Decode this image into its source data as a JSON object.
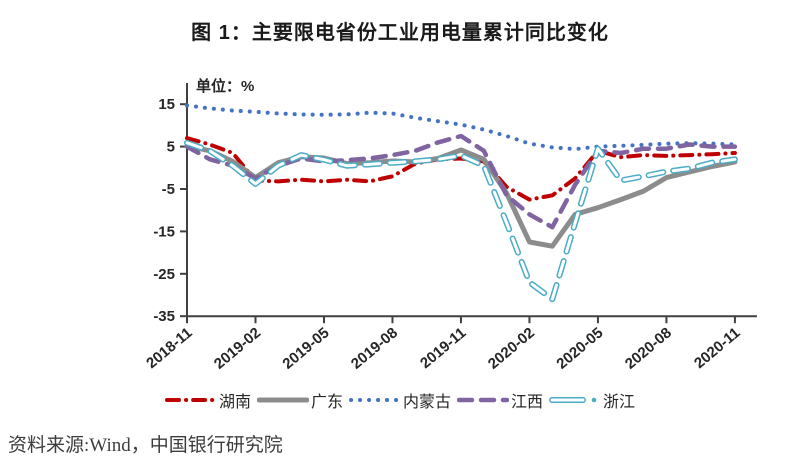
{
  "title": "图 1：主要限电省份工业用电量累计同比变化",
  "unit_label": "单位：%",
  "source": "资料来源:Wind，中国银行研究院",
  "chart_data": {
    "type": "line",
    "title": "图 1：主要限电省份工业用电量累计同比变化",
    "xlabel": "",
    "ylabel": "单位：%",
    "ylim": [
      -35,
      20
    ],
    "y_ticks": [
      15,
      5,
      -5,
      -15,
      -25,
      -35
    ],
    "grid": false,
    "legend_position": "bottom",
    "x": [
      "2018-11",
      "2018-12",
      "2019-01",
      "2019-02",
      "2019-03",
      "2019-04",
      "2019-05",
      "2019-06",
      "2019-07",
      "2019-08",
      "2019-09",
      "2019-10",
      "2019-11",
      "2019-12",
      "2020-01",
      "2020-02",
      "2020-03",
      "2020-04",
      "2020-05",
      "2020-06",
      "2020-07",
      "2020-08",
      "2020-09",
      "2020-10",
      "2020-11"
    ],
    "x_tick_labels": [
      "2018-11",
      "2019-02",
      "2019-05",
      "2019-08",
      "2019-11",
      "2020-02",
      "2020-05",
      "2020-08",
      "2020-11"
    ],
    "series": [
      {
        "name": "湖南",
        "color": "#c00000",
        "style": "dash-dot",
        "values": [
          7,
          5.5,
          3.5,
          -3,
          -3.2,
          -2.8,
          -3.2,
          -2.8,
          -3.2,
          -2,
          1,
          2,
          2.2,
          1.5,
          -4.5,
          -7.5,
          -6.5,
          -2.5,
          4,
          2.5,
          3,
          2.8,
          3,
          3.2,
          3.5
        ]
      },
      {
        "name": "广东",
        "color": "#8c8c8c",
        "style": "solid-thick",
        "values": [
          5.2,
          4,
          1.5,
          -2.3,
          1.2,
          2.6,
          2.3,
          1,
          1.2,
          1.6,
          1.4,
          2.2,
          4.2,
          2,
          -6,
          -17.5,
          -18.5,
          -11,
          -9.4,
          -7.5,
          -5.5,
          -2.3,
          -1,
          0.3,
          1.4
        ]
      },
      {
        "name": "内蒙古",
        "color": "#4472c4",
        "style": "dotted",
        "values": [
          14.7,
          14,
          13.5,
          13.2,
          12.8,
          12.6,
          12.5,
          12.6,
          13,
          12.8,
          11.8,
          11,
          10.2,
          9,
          7.5,
          5.7,
          4.8,
          4.4,
          5,
          5.2,
          5.4,
          5.7,
          5.8,
          5.7,
          5.5
        ]
      },
      {
        "name": "江西",
        "color": "#8064a2",
        "style": "dashed",
        "values": [
          5,
          2,
          0.5,
          -2.5,
          0.5,
          2.2,
          1.5,
          1.8,
          2.2,
          3,
          4,
          6,
          7.5,
          4,
          -6.5,
          -11,
          -14,
          -4,
          4,
          3.5,
          4.5,
          4.5,
          5.5,
          5,
          5
        ]
      },
      {
        "name": "浙江",
        "color": "#4bacc6",
        "style": "hollow-dash",
        "values": [
          5.9,
          4,
          0.5,
          -3.8,
          0.5,
          3,
          1.9,
          0.5,
          0.8,
          1.2,
          1.5,
          2,
          2.9,
          0.5,
          -13,
          -27,
          -31,
          -13,
          4.5,
          -3,
          -2,
          -0.9,
          -0.2,
          1.2,
          2
        ]
      }
    ]
  }
}
